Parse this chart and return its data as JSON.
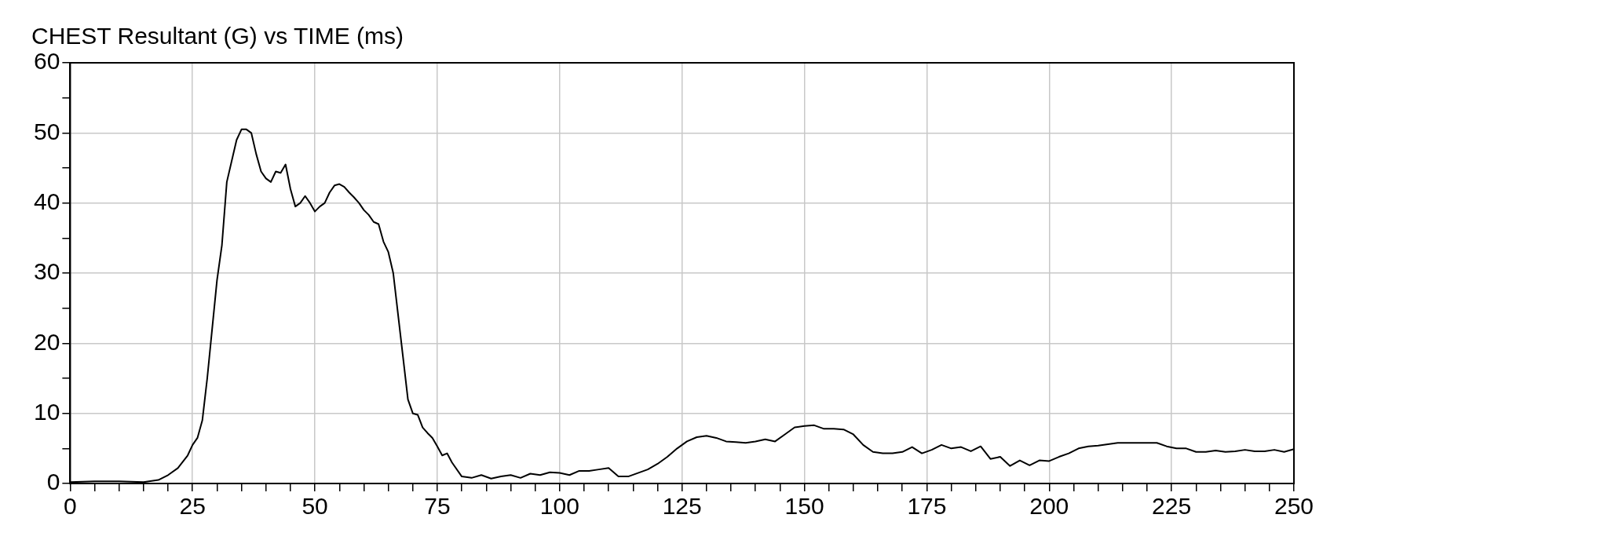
{
  "chart_data": {
    "type": "line",
    "title": "CHEST Resultant (G) vs TIME (ms)",
    "x": [
      0,
      5,
      10,
      15,
      18,
      20,
      22,
      24,
      25,
      26,
      27,
      28,
      29,
      30,
      31,
      32,
      33,
      34,
      35,
      36,
      37,
      38,
      39,
      40,
      41,
      42,
      43,
      44,
      45,
      46,
      47,
      48,
      49,
      50,
      51,
      52,
      53,
      54,
      55,
      56,
      57,
      58,
      59,
      60,
      61,
      62,
      63,
      64,
      65,
      66,
      67,
      68,
      69,
      70,
      71,
      72,
      73,
      74,
      75,
      76,
      77,
      78,
      80,
      82,
      84,
      86,
      88,
      90,
      92,
      94,
      96,
      98,
      100,
      102,
      104,
      106,
      108,
      110,
      112,
      114,
      116,
      118,
      120,
      122,
      124,
      126,
      128,
      130,
      132,
      134,
      136,
      138,
      140,
      142,
      144,
      146,
      148,
      150,
      152,
      154,
      156,
      158,
      160,
      162,
      164,
      166,
      168,
      170,
      172,
      174,
      176,
      178,
      180,
      182,
      184,
      186,
      188,
      190,
      192,
      194,
      196,
      198,
      200,
      202,
      204,
      206,
      208,
      210,
      212,
      214,
      216,
      218,
      220,
      222,
      224,
      226,
      228,
      230,
      232,
      234,
      236,
      238,
      240,
      242,
      244,
      246,
      248,
      250
    ],
    "series": [
      {
        "color": "#000000",
        "values": [
          0.2,
          0.3,
          0.3,
          0.2,
          0.5,
          1.2,
          2.2,
          4,
          5.5,
          6.5,
          9,
          15,
          22,
          29,
          34,
          43,
          46,
          49,
          50.5,
          50.5,
          50,
          47,
          44.5,
          43.5,
          43,
          44.5,
          44.3,
          45.5,
          42,
          39.5,
          40,
          41,
          40,
          38.8,
          39.5,
          40,
          41.5,
          42.5,
          42.7,
          42.3,
          41.5,
          40.8,
          40,
          39,
          38.3,
          37.3,
          37,
          34.5,
          33,
          30,
          24,
          18,
          12,
          10,
          9.8,
          8,
          7.2,
          6.5,
          5.3,
          4,
          4.3,
          3,
          1,
          0.8,
          1.2,
          0.7,
          1,
          1.2,
          0.8,
          1.4,
          1.2,
          1.6,
          1.5,
          1.2,
          1.8,
          1.8,
          2,
          2.2,
          1,
          1,
          1.5,
          2,
          2.8,
          3.8,
          5,
          6,
          6.6,
          6.8,
          6.5,
          6,
          5.9,
          5.8,
          6,
          6.3,
          6,
          7,
          8,
          8.2,
          8.3,
          7.8,
          7.8,
          7.7,
          7,
          5.5,
          4.5,
          4.3,
          4.3,
          4.5,
          5.2,
          4.3,
          4.8,
          5.5,
          5,
          5.2,
          4.6,
          5.3,
          3.5,
          3.8,
          2.5,
          3.3,
          2.6,
          3.3,
          3.2,
          3.8,
          4.3,
          5,
          5.3,
          5.4,
          5.6,
          5.8,
          5.8,
          5.8,
          5.8,
          5.8,
          5.3,
          5,
          5,
          4.5,
          4.5,
          4.7,
          4.5,
          4.6,
          4.8,
          4.6,
          4.6,
          4.8,
          4.5,
          4.9
        ]
      }
    ],
    "xlim": [
      0,
      250
    ],
    "xticks": [
      0,
      {
        "value": 5,
        "label": null
      },
      {
        "value": 10,
        "label": null
      },
      {
        "value": 15,
        "label": null
      },
      {
        "value": 20,
        "label": null
      },
      25,
      {
        "value": 30,
        "label": null
      },
      {
        "value": 35,
        "label": null
      },
      {
        "value": 40,
        "label": null
      },
      {
        "value": 45,
        "label": null
      },
      50,
      {
        "value": 55,
        "label": null
      },
      {
        "value": 60,
        "label": null
      },
      {
        "value": 65,
        "label": null
      },
      {
        "value": 70,
        "label": null
      },
      75,
      {
        "value": 80,
        "label": null
      },
      {
        "value": 85,
        "label": null
      },
      {
        "value": 90,
        "label": null
      },
      {
        "value": 95,
        "label": null
      },
      100,
      {
        "value": 105,
        "label": null
      },
      {
        "value": 110,
        "label": null
      },
      {
        "value": 115,
        "label": null
      },
      {
        "value": 120,
        "label": null
      },
      125,
      {
        "value": 130,
        "label": null
      },
      {
        "value": 135,
        "label": null
      },
      {
        "value": 140,
        "label": null
      },
      {
        "value": 145,
        "label": null
      },
      150,
      {
        "value": 155,
        "label": null
      },
      {
        "value": 160,
        "label": null
      },
      {
        "value": 165,
        "label": null
      },
      {
        "value": 170,
        "label": null
      },
      175,
      {
        "value": 180,
        "label": null
      },
      {
        "value": 185,
        "label": null
      },
      {
        "value": 190,
        "label": null
      },
      {
        "value": 195,
        "label": null
      },
      200,
      {
        "value": 205,
        "label": null
      },
      {
        "value": 210,
        "label": null
      },
      {
        "value": 215,
        "label": null
      },
      {
        "value": 220,
        "label": null
      },
      225,
      {
        "value": 230,
        "label": null
      },
      {
        "value": 235,
        "label": null
      },
      {
        "value": 240,
        "label": null
      },
      {
        "value": 245,
        "label": null
      },
      250
    ],
    "ylim": [
      0,
      60
    ],
    "yticks": [
      0,
      {
        "value": 5,
        "label": null
      },
      10,
      {
        "value": 15,
        "label": null
      },
      20,
      {
        "value": 25,
        "label": null
      },
      30,
      {
        "value": 35,
        "label": null
      },
      40,
      {
        "value": 45,
        "label": null
      },
      50,
      {
        "value": 55,
        "label": null
      },
      60
    ],
    "grid": true,
    "marker": "none",
    "line_style": "solid"
  }
}
